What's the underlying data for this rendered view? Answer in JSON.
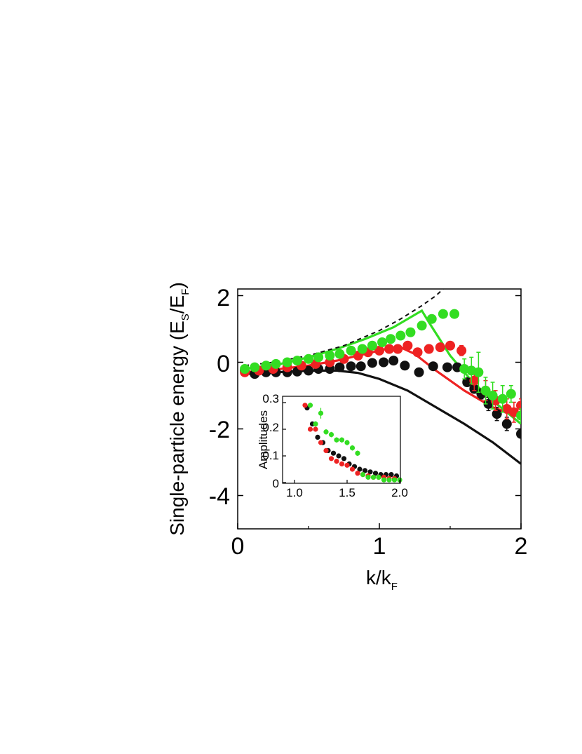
{
  "chart_data": [
    {
      "id": "main",
      "type": "scatter",
      "xlabel": {
        "main": "k/k",
        "sub": "F"
      },
      "ylabel": {
        "pre": "Single-particle energy (E",
        "sub1": "S",
        "mid": "/E",
        "sub2": "F",
        "post": ")"
      },
      "xlim": [
        0,
        2
      ],
      "ylim": [
        -5,
        2.2
      ],
      "xticks": [
        0,
        1,
        2
      ],
      "xtick_labels": [
        "0",
        "1",
        "2"
      ],
      "yticks": [
        2,
        0,
        -2,
        -4
      ],
      "ytick_labels": [
        "2",
        "0",
        "-2",
        "-4"
      ],
      "series": [
        {
          "name": "black-data",
          "kind": "points",
          "color": "#111111",
          "x": [
            0.05,
            0.12,
            0.2,
            0.27,
            0.35,
            0.42,
            0.5,
            0.57,
            0.65,
            0.72,
            0.8,
            0.87,
            0.95,
            1.03,
            1.1,
            1.18,
            1.28,
            1.38,
            1.48,
            1.55,
            1.62,
            1.67,
            1.72,
            1.77,
            1.83,
            1.9,
            2.0
          ],
          "y": [
            -0.25,
            -0.35,
            -0.3,
            -0.3,
            -0.3,
            -0.28,
            -0.25,
            -0.2,
            -0.2,
            -0.15,
            -0.12,
            -0.12,
            -0.02,
            0.0,
            0.05,
            -0.1,
            -0.3,
            -0.12,
            -0.15,
            -0.15,
            -0.6,
            -0.8,
            -0.95,
            -1.25,
            -1.55,
            -1.85,
            -2.15
          ],
          "err": [
            0,
            0,
            0,
            0,
            0,
            0,
            0,
            0,
            0,
            0,
            0,
            0,
            0,
            0,
            0,
            0,
            0,
            0,
            0,
            0,
            0.12,
            0.12,
            0.15,
            0.2,
            0.2,
            0.2,
            0.1
          ]
        },
        {
          "name": "red-data",
          "kind": "points",
          "color": "#ee2222",
          "x": [
            0.05,
            0.15,
            0.25,
            0.35,
            0.45,
            0.55,
            0.65,
            0.75,
            0.85,
            0.92,
            1.0,
            1.07,
            1.13,
            1.2,
            1.27,
            1.35,
            1.43,
            1.5,
            1.58,
            1.67,
            1.75,
            1.82,
            1.9,
            1.95,
            2.0
          ],
          "y": [
            -0.3,
            -0.25,
            -0.2,
            -0.15,
            -0.1,
            -0.05,
            0.0,
            0.1,
            0.2,
            0.3,
            0.35,
            0.4,
            0.4,
            0.5,
            0.3,
            0.4,
            0.45,
            0.5,
            0.35,
            -0.55,
            -0.85,
            -1.15,
            -1.4,
            -1.5,
            -1.3
          ],
          "err": [
            0,
            0,
            0,
            0,
            0,
            0,
            0,
            0,
            0,
            0,
            0,
            0,
            0,
            0,
            0,
            0,
            0,
            0,
            0.15,
            0.3,
            0.3,
            0.3,
            0.3,
            0.3,
            0.2
          ]
        },
        {
          "name": "green-data",
          "kind": "points",
          "color": "#33dd22",
          "x": [
            0.05,
            0.12,
            0.2,
            0.27,
            0.35,
            0.42,
            0.5,
            0.57,
            0.65,
            0.72,
            0.8,
            0.88,
            0.95,
            1.02,
            1.08,
            1.15,
            1.22,
            1.3,
            1.37,
            1.45,
            1.53,
            1.6,
            1.65,
            1.7,
            1.75,
            1.8,
            1.87,
            1.93,
            2.0
          ],
          "y": [
            -0.2,
            -0.15,
            -0.1,
            -0.05,
            0.0,
            0.05,
            0.1,
            0.15,
            0.2,
            0.25,
            0.35,
            0.4,
            0.5,
            0.6,
            0.7,
            0.8,
            0.9,
            1.1,
            1.3,
            1.45,
            1.45,
            -0.2,
            -0.25,
            -0.3,
            -0.85,
            -1.0,
            -1.1,
            -0.95,
            -1.6
          ],
          "err": [
            0,
            0,
            0,
            0,
            0,
            0,
            0,
            0,
            0,
            0,
            0,
            0,
            0,
            0,
            0,
            0,
            0,
            0,
            0,
            0,
            0,
            0.3,
            0.4,
            0.6,
            0.4,
            0.4,
            0.4,
            0.25,
            0.2
          ]
        },
        {
          "name": "black-curve",
          "kind": "line",
          "color": "#111111",
          "dash": false,
          "x": [
            0.05,
            0.2,
            0.4,
            0.55,
            0.7,
            0.85,
            1.0,
            1.2,
            1.4,
            1.6,
            1.8,
            2.0
          ],
          "y": [
            -0.35,
            -0.32,
            -0.27,
            -0.25,
            -0.25,
            -0.32,
            -0.5,
            -0.85,
            -1.35,
            -1.85,
            -2.4,
            -3.05
          ]
        },
        {
          "name": "red-curve",
          "kind": "line",
          "color": "#ee2222",
          "dash": false,
          "x": [
            0.05,
            0.3,
            0.5,
            0.7,
            0.9,
            1.05,
            1.15,
            1.25,
            1.4,
            1.6,
            1.8,
            2.0
          ],
          "y": [
            -0.3,
            -0.2,
            -0.1,
            0.05,
            0.25,
            0.4,
            0.45,
            0.25,
            -0.25,
            -0.85,
            -1.35,
            -1.65
          ]
        },
        {
          "name": "green-curve",
          "kind": "line",
          "color": "#33dd22",
          "dash": false,
          "x": [
            0.05,
            0.3,
            0.5,
            0.7,
            0.9,
            1.1,
            1.3,
            1.35,
            1.5,
            1.65,
            1.8,
            2.0
          ],
          "y": [
            -0.2,
            -0.05,
            0.15,
            0.4,
            0.7,
            1.05,
            1.55,
            1.2,
            0.2,
            -0.55,
            -1.15,
            -1.85
          ]
        },
        {
          "name": "dashed-curve",
          "kind": "line",
          "color": "#111111",
          "dash": true,
          "x": [
            0.05,
            0.25,
            0.5,
            0.75,
            1.0,
            1.15,
            1.3,
            1.4,
            1.45
          ],
          "y": [
            -0.1,
            0.0,
            0.2,
            0.5,
            0.95,
            1.3,
            1.7,
            2.0,
            2.2
          ]
        }
      ]
    },
    {
      "id": "inset",
      "type": "scatter",
      "ylabel": "Amplitudes",
      "xlim": [
        1.0,
        2.0
      ],
      "ylim": [
        0,
        0.3
      ],
      "xticks": [
        1.0,
        1.5,
        2.0
      ],
      "xtick_labels": [
        "1.0",
        "1.5",
        "2.0"
      ],
      "yticks": [
        0,
        0.1,
        0.2,
        0.3
      ],
      "ytick_labels": [
        "0",
        "0.1",
        "0.2",
        "0.3"
      ],
      "series": [
        {
          "name": "black-amp",
          "color": "#111111",
          "x": [
            1.12,
            1.17,
            1.22,
            1.27,
            1.32,
            1.37,
            1.42,
            1.47,
            1.52,
            1.57,
            1.62,
            1.67,
            1.72,
            1.77,
            1.82,
            1.87,
            1.92,
            1.97
          ],
          "y": [
            0.28,
            0.22,
            0.17,
            0.15,
            0.12,
            0.11,
            0.1,
            0.09,
            0.07,
            0.06,
            0.05,
            0.045,
            0.04,
            0.035,
            0.03,
            0.03,
            0.03,
            0.025
          ]
        },
        {
          "name": "red-amp",
          "color": "#ee2222",
          "x": [
            1.1,
            1.15,
            1.2,
            1.25,
            1.3,
            1.35,
            1.4,
            1.45,
            1.5,
            1.55,
            1.6,
            1.65,
            1.7,
            1.75,
            1.8,
            1.85,
            1.9,
            1.95
          ],
          "y": [
            0.29,
            0.2,
            0.2,
            0.15,
            0.12,
            0.09,
            0.08,
            0.07,
            0.065,
            0.05,
            0.035,
            0.03,
            0.025,
            0.02,
            0.02,
            0.02,
            0.015,
            0.015
          ]
        },
        {
          "name": "green-amp",
          "color": "#33dd22",
          "x": [
            1.15,
            1.2,
            1.25,
            1.3,
            1.35,
            1.4,
            1.45,
            1.5,
            1.55,
            1.6,
            1.65,
            1.7,
            1.75,
            1.8,
            1.85,
            1.9,
            1.95,
            2.0
          ],
          "y": [
            0.29,
            0.22,
            0.26,
            0.19,
            0.18,
            0.16,
            0.16,
            0.15,
            0.13,
            0.11,
            0.03,
            0.02,
            0.02,
            0.02,
            0.01,
            0.01,
            0.01,
            0.01
          ],
          "err": [
            0.01,
            0.01,
            0.02,
            0.01,
            0.01,
            0.01,
            0.01,
            0.01,
            0.01,
            0.01,
            0,
            0,
            0,
            0,
            0,
            0,
            0,
            0
          ]
        }
      ]
    }
  ]
}
